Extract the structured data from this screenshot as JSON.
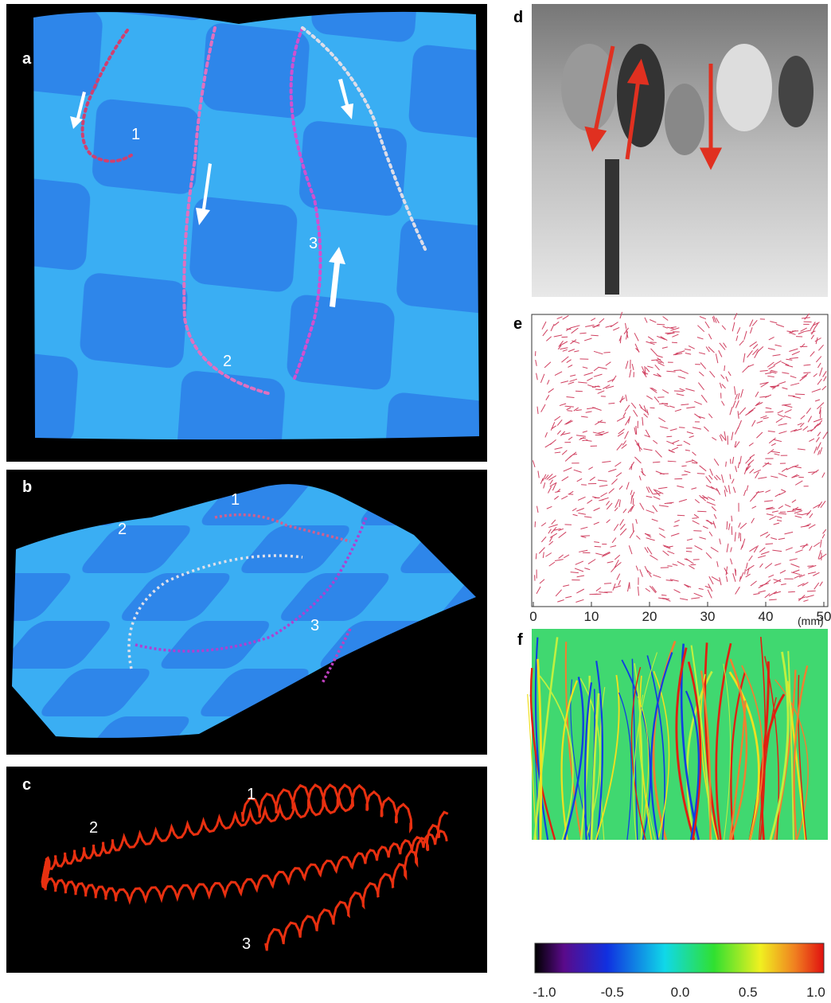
{
  "panel_labels": [
    "a",
    "b",
    "c",
    "d",
    "e",
    "f"
  ],
  "panel_a": {
    "curve_labels": [
      "1",
      "2",
      "3"
    ]
  },
  "panel_b": {
    "curve_labels": [
      "1",
      "2",
      "3"
    ]
  },
  "panel_c": {
    "curve_labels": [
      "1",
      "2",
      "3"
    ]
  },
  "panel_e": {
    "x_ticks": [
      "0",
      "10",
      "20",
      "30",
      "40",
      "50"
    ],
    "x_unit": "(mm)"
  },
  "panel_f": {
    "colorbar_ticks": [
      "-1.0",
      "-0.5",
      "0.0",
      "0.5",
      "1.0"
    ]
  }
}
